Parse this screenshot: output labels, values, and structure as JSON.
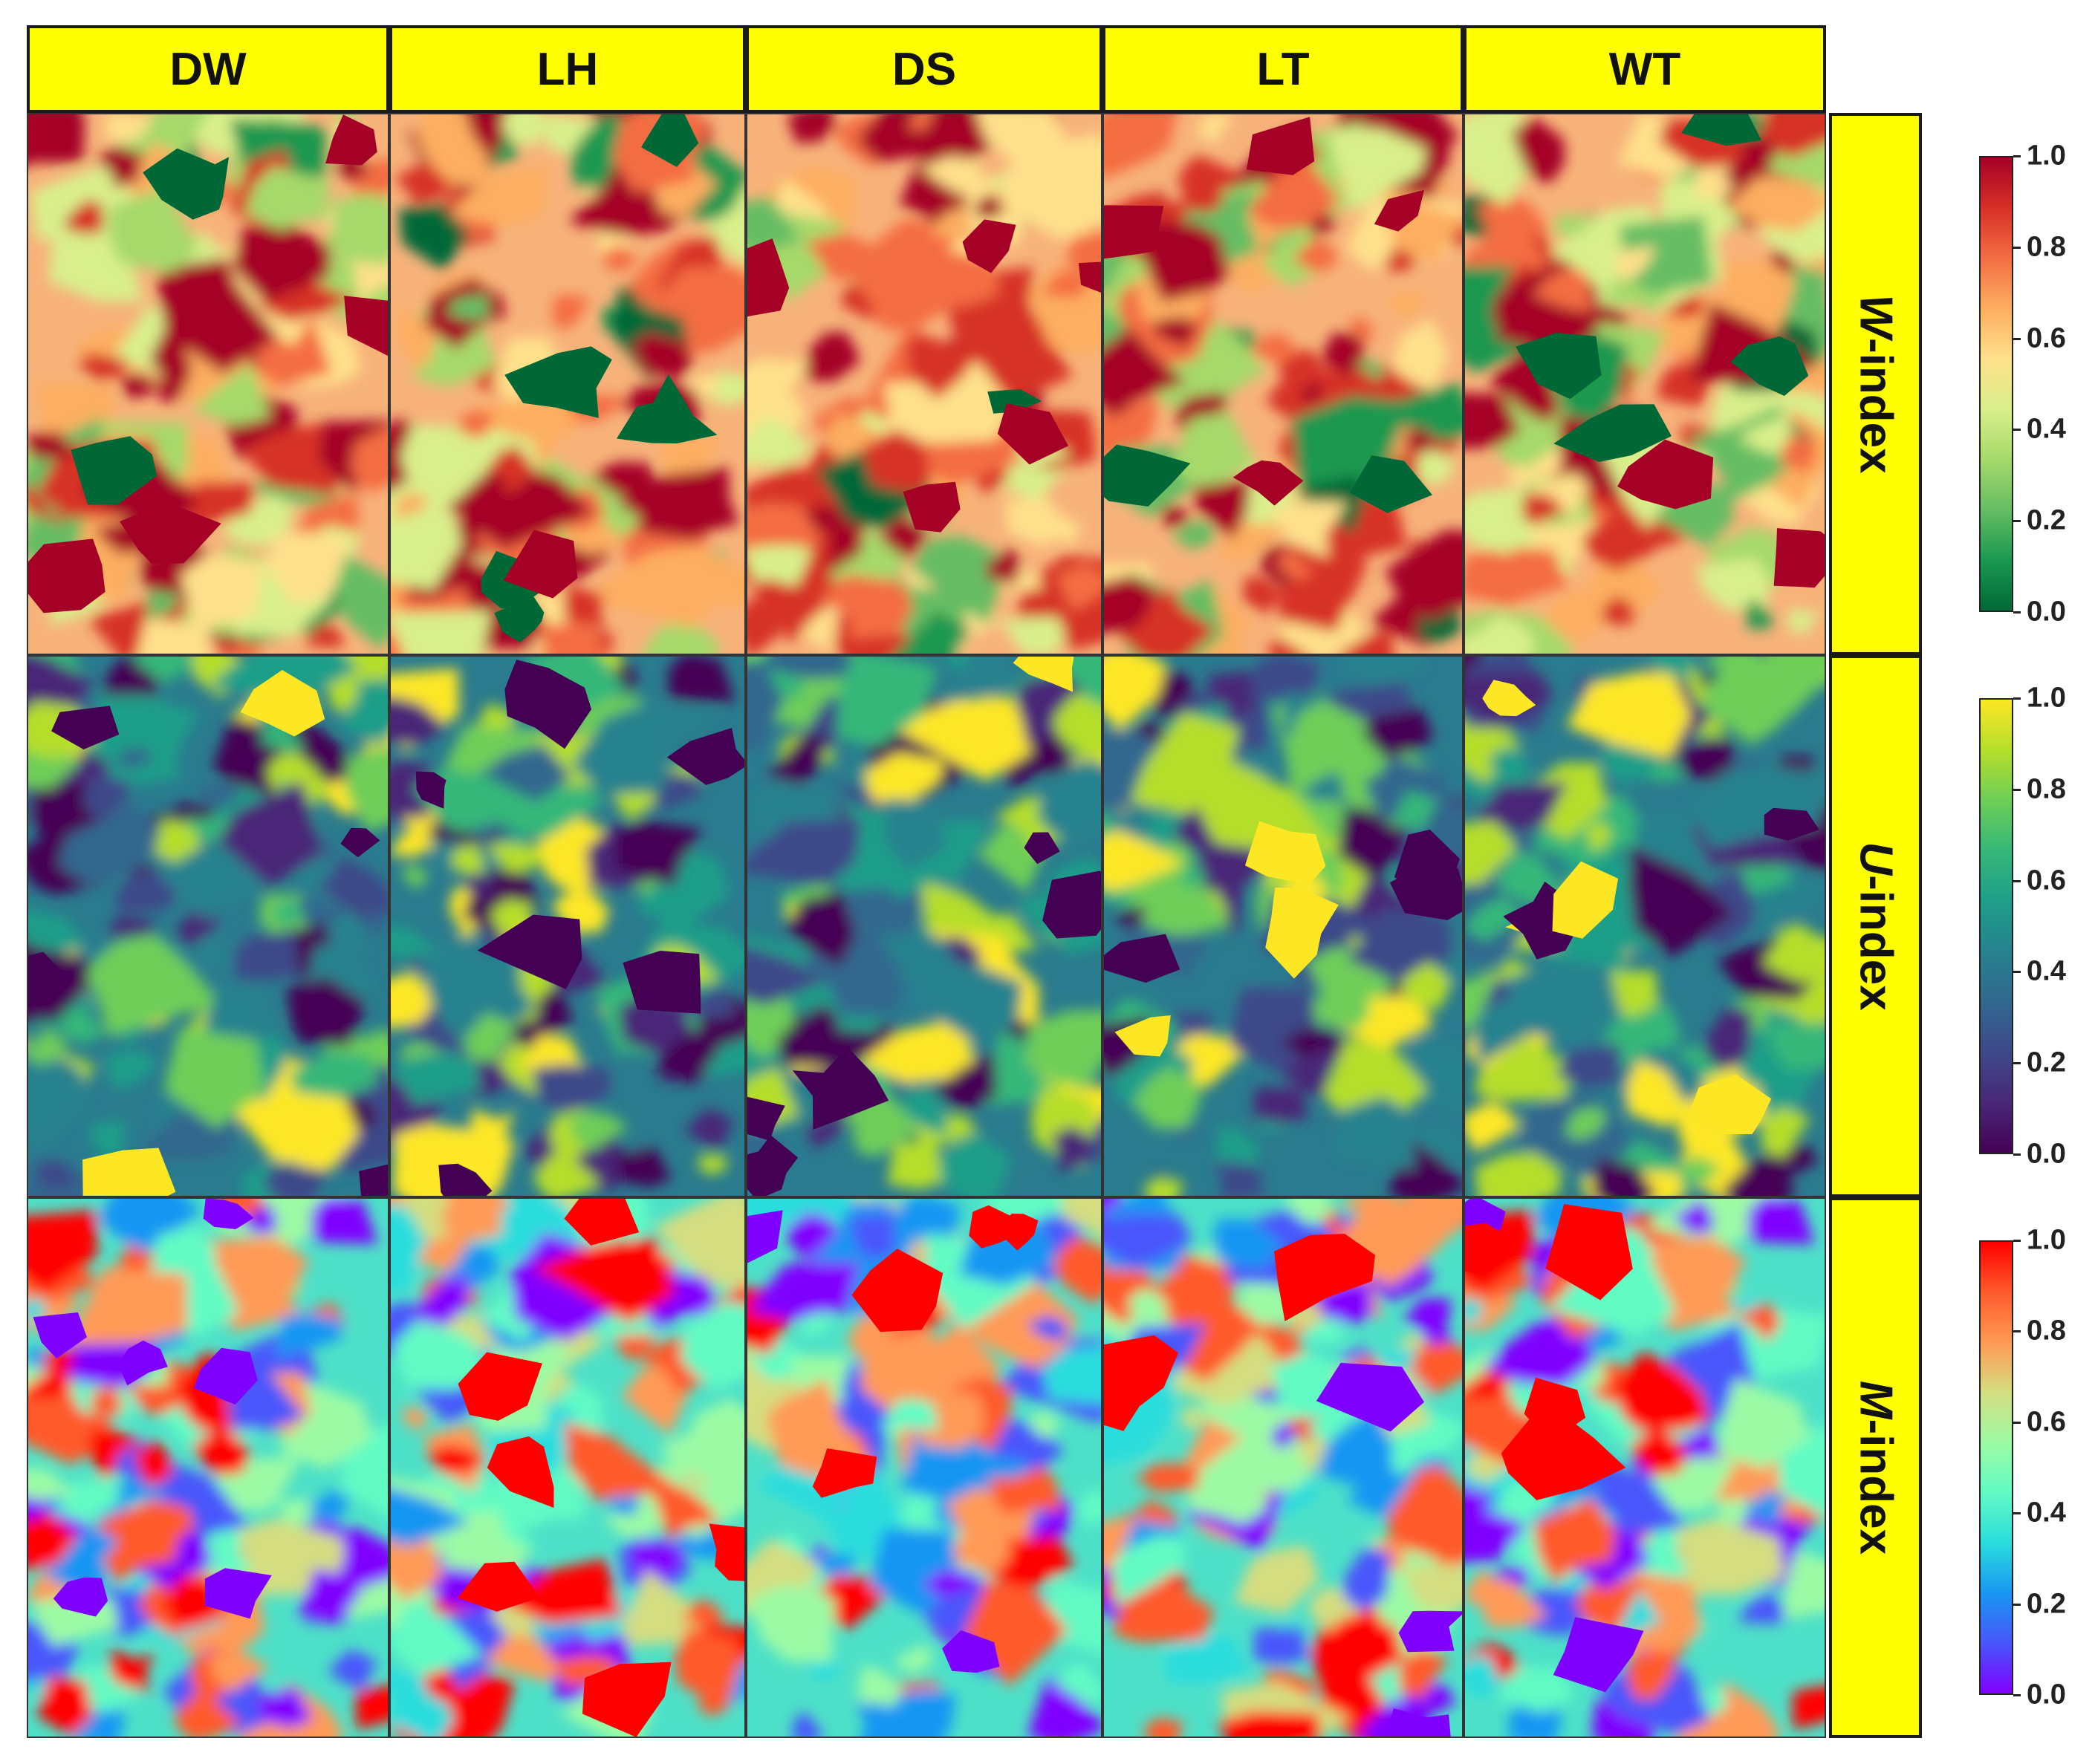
{
  "chart_data": {
    "type": "heatmap",
    "columns": [
      "DW",
      "LH",
      "DS",
      "LT",
      "WT"
    ],
    "rows": [
      {
        "label_italic": "W",
        "label_rest": "-index",
        "colormap": "RdYlGn_r",
        "colorbar_ticks": [
          "1.0",
          "0.8",
          "0.6",
          "0.4",
          "0.2",
          "0.0"
        ],
        "colors": [
          "#006837",
          "#1a9850",
          "#66bd63",
          "#a6d96a",
          "#d9ef8b",
          "#fee08b",
          "#fdae61",
          "#f46d43",
          "#d73027",
          "#a50026"
        ],
        "background": "#f7b27a"
      },
      {
        "label_italic": "U",
        "label_rest": "-index",
        "colormap": "viridis",
        "colorbar_ticks": [
          "1.0",
          "0.8",
          "0.6",
          "0.4",
          "0.2",
          "0.0"
        ],
        "colors": [
          "#440154",
          "#482878",
          "#3e4989",
          "#31688e",
          "#26828e",
          "#1f9e89",
          "#35b779",
          "#6ece58",
          "#b5de2b",
          "#fde725"
        ],
        "background": "#2a7b8e"
      },
      {
        "label_italic": "M",
        "label_rest": "-index",
        "colormap": "rainbow",
        "colorbar_ticks": [
          "1.0",
          "0.8",
          "0.6",
          "0.4",
          "0.2",
          "0.0"
        ],
        "colors": [
          "#8000ff",
          "#4856fb",
          "#1996f3",
          "#2adddd",
          "#62fbc4",
          "#9cfba4",
          "#d4dd80",
          "#ff9a56",
          "#ff5a2c",
          "#ff0000"
        ],
        "background": "#4de0c8"
      }
    ],
    "value_range": [
      0.0,
      1.0
    ]
  }
}
